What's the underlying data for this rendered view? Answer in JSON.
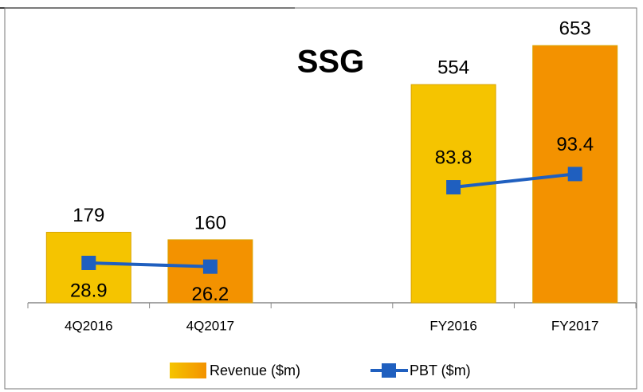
{
  "chart_data": {
    "type": "bar",
    "title": "SSG",
    "categories": [
      "4Q2016",
      "4Q2017",
      null,
      "FY2016",
      "FY2017"
    ],
    "ylim": [
      0,
      700
    ],
    "y2lim": [
      0,
      200
    ],
    "series": [
      {
        "name": "Revenue ($m)",
        "type": "bar",
        "color": "#f5c400",
        "colors": [
          "#f5c400",
          "#f39200",
          null,
          "#f5c400",
          "#f39200"
        ],
        "values": [
          179,
          160,
          null,
          554,
          653
        ]
      },
      {
        "name": "PBT ($m)",
        "type": "line",
        "axis": "y2",
        "color": "#1f5fbf",
        "values": [
          28.9,
          26.2,
          null,
          83.8,
          93.4
        ]
      }
    ]
  }
}
